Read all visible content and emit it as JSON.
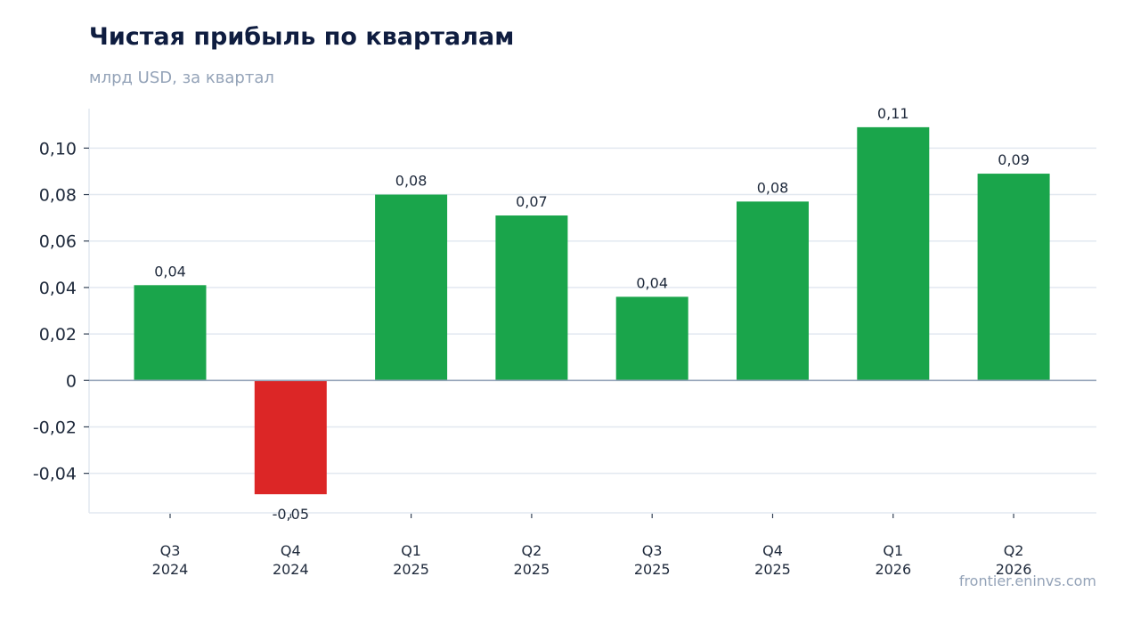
{
  "header": {
    "title": "Чистая прибыль по кварталам",
    "subtitle": "млрд USD, за квартал"
  },
  "footer": {
    "source": "frontier.eninvs.com"
  },
  "colors": {
    "positive": "#1aa54b",
    "negative": "#dc2626",
    "grid": "#e2e8f0",
    "zero_line": "#94a3b8"
  },
  "chart_data": {
    "type": "bar",
    "title": "Чистая прибыль по кварталам",
    "subtitle": "млрд USD, за квартал",
    "xlabel": "",
    "ylabel": "",
    "categories": [
      [
        "Q3",
        "2024"
      ],
      [
        "Q4",
        "2024"
      ],
      [
        "Q1",
        "2025"
      ],
      [
        "Q2",
        "2025"
      ],
      [
        "Q3",
        "2025"
      ],
      [
        "Q4",
        "2025"
      ],
      [
        "Q1",
        "2026"
      ],
      [
        "Q2",
        "2026"
      ]
    ],
    "values": [
      0.041,
      -0.049,
      0.08,
      0.071,
      0.036,
      0.077,
      0.109,
      0.089
    ],
    "data_labels": [
      "0,04",
      "-0,05",
      "0,08",
      "0,07",
      "0,04",
      "0,08",
      "0,11",
      "0,09"
    ],
    "ylim": [
      -0.057,
      0.117
    ],
    "yticks": [
      -0.04,
      -0.02,
      0,
      0.02,
      0.04,
      0.06,
      0.08,
      0.1
    ],
    "ytick_labels": [
      "-0,04",
      "-0,02",
      "0",
      "0,02",
      "0,04",
      "0,06",
      "0,08",
      "0,10"
    ],
    "grid": true,
    "legend": "none"
  }
}
